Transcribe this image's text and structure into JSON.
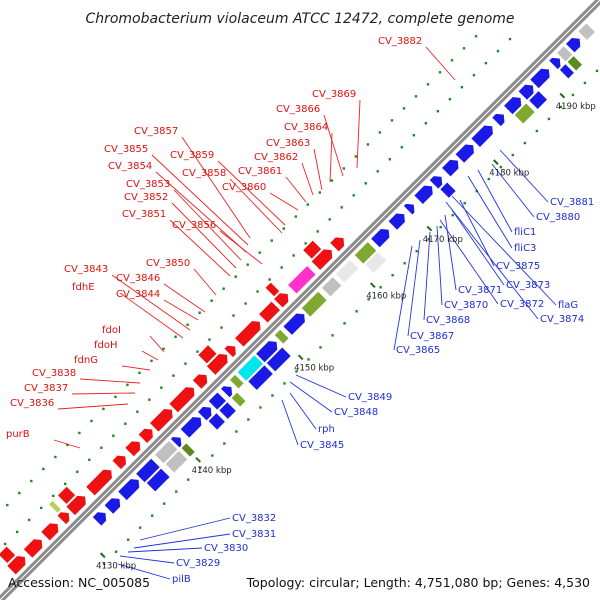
{
  "title": "Chromobacterium violaceum ATCC 12472, complete genome",
  "footer": {
    "accession": "Accession: NC_005085",
    "summary": "Topology: circular; Length: 4,751,080 bp; Genes: 4,530"
  },
  "colors": {
    "forward_gene": "#ee1111",
    "reverse_gene": "#1a1ae6",
    "backbone": "#8c8c8c",
    "gc_dots": "#1e8a1e"
  },
  "ticks": [
    {
      "label": "4130 kbp"
    },
    {
      "label": "4140 kbp"
    },
    {
      "label": "4150 kbp"
    },
    {
      "label": "4160 kbp"
    },
    {
      "label": "4170 kbp"
    },
    {
      "label": "4180 kbp"
    },
    {
      "label": "4190 kbp"
    }
  ],
  "forward_labels": [
    {
      "text": "CV_3882"
    },
    {
      "text": "CV_3869"
    },
    {
      "text": "CV_3866"
    },
    {
      "text": "CV_3864"
    },
    {
      "text": "CV_3863"
    },
    {
      "text": "CV_3862"
    },
    {
      "text": "CV_3861"
    },
    {
      "text": "CV_3860"
    },
    {
      "text": "CV_3857"
    },
    {
      "text": "CV_3859"
    },
    {
      "text": "CV_3855"
    },
    {
      "text": "CV_3858"
    },
    {
      "text": "CV_3854"
    },
    {
      "text": "CV_3853"
    },
    {
      "text": "CV_3852"
    },
    {
      "text": "CV_3851"
    },
    {
      "text": "CV_3856"
    },
    {
      "text": "CV_3850"
    },
    {
      "text": "CV_3843"
    },
    {
      "text": "CV_3846"
    },
    {
      "text": "fdhE"
    },
    {
      "text": "CV_3844"
    },
    {
      "text": "fdoI"
    },
    {
      "text": "fdoH"
    },
    {
      "text": "fdnG"
    },
    {
      "text": "CV_3838"
    },
    {
      "text": "CV_3837"
    },
    {
      "text": "CV_3836"
    },
    {
      "text": "purB"
    }
  ],
  "reverse_labels": [
    {
      "text": "CV_3881"
    },
    {
      "text": "CV_3880"
    },
    {
      "text": "fliC1"
    },
    {
      "text": "fliC3"
    },
    {
      "text": "CV_3875"
    },
    {
      "text": "CV_3873"
    },
    {
      "text": "CV_3871"
    },
    {
      "text": "CV_3872"
    },
    {
      "text": "flaG"
    },
    {
      "text": "CV_3870"
    },
    {
      "text": "CV_3874"
    },
    {
      "text": "CV_3868"
    },
    {
      "text": "CV_3867"
    },
    {
      "text": "CV_3865"
    },
    {
      "text": "CV_3849"
    },
    {
      "text": "CV_3848"
    },
    {
      "text": "rph"
    },
    {
      "text": "CV_3845"
    },
    {
      "text": "CV_3832"
    },
    {
      "text": "CV_3831"
    },
    {
      "text": "CV_3830"
    },
    {
      "text": "CV_3829"
    },
    {
      "text": "pilB"
    }
  ]
}
